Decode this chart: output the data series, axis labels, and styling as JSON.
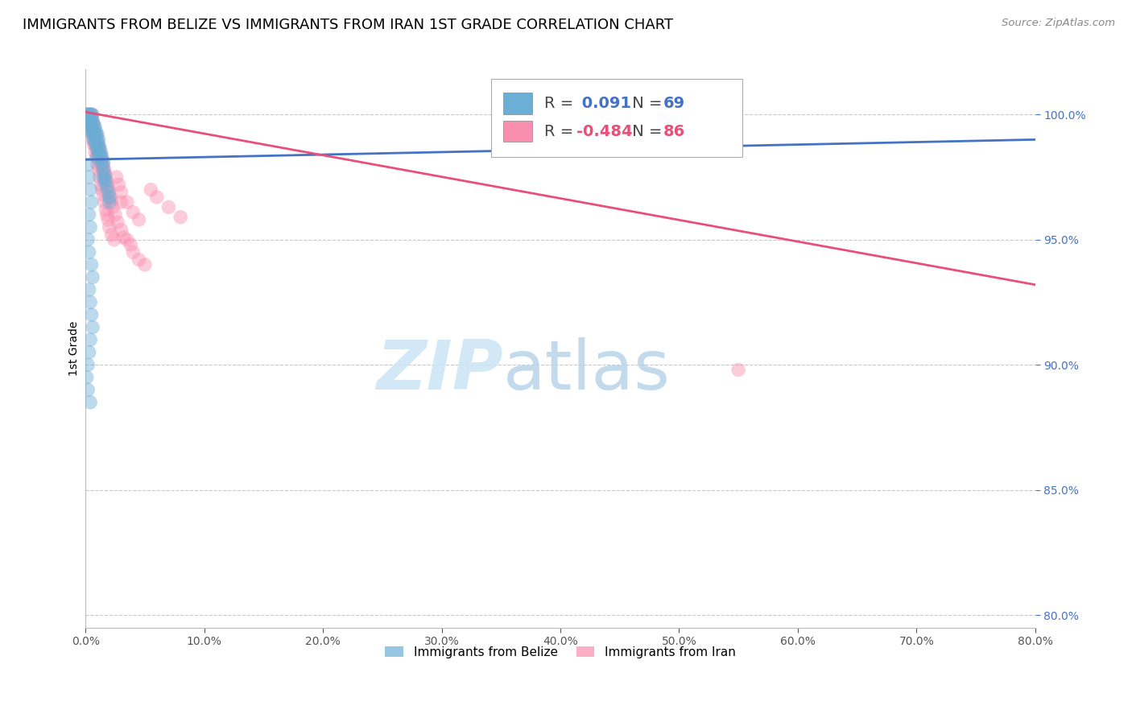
{
  "title": "IMMIGRANTS FROM BELIZE VS IMMIGRANTS FROM IRAN 1ST GRADE CORRELATION CHART",
  "source": "Source: ZipAtlas.com",
  "xlabel_vals": [
    0.0,
    10.0,
    20.0,
    30.0,
    40.0,
    50.0,
    60.0,
    70.0,
    80.0
  ],
  "ylabel_vals": [
    80.0,
    85.0,
    90.0,
    95.0,
    100.0
  ],
  "ylabel_label": "1st Grade",
  "xlim": [
    0.0,
    80.0
  ],
  "ylim": [
    79.5,
    101.8
  ],
  "belize_R": 0.091,
  "belize_N": 69,
  "iran_R": -0.484,
  "iran_N": 86,
  "belize_color": "#6baed6",
  "iran_color": "#fa8eb0",
  "belize_line_color": "#4472c4",
  "iran_line_color": "#e8507a",
  "legend_label_belize": "Immigrants from Belize",
  "legend_label_iran": "Immigrants from Iran",
  "watermark_zip": "ZIP",
  "watermark_atlas": "atlas",
  "background_color": "#ffffff",
  "grid_color": "#c8c8c8",
  "title_fontsize": 13,
  "axis_fontsize": 10,
  "belize_scatter_x": [
    0.1,
    0.2,
    0.2,
    0.3,
    0.3,
    0.3,
    0.4,
    0.4,
    0.4,
    0.5,
    0.5,
    0.5,
    0.5,
    0.6,
    0.6,
    0.6,
    0.6,
    0.7,
    0.7,
    0.7,
    0.8,
    0.8,
    0.8,
    0.9,
    0.9,
    0.9,
    1.0,
    1.0,
    1.0,
    1.0,
    1.1,
    1.1,
    1.1,
    1.2,
    1.2,
    1.3,
    1.3,
    1.4,
    1.4,
    1.5,
    1.5,
    1.5,
    1.6,
    1.6,
    1.7,
    1.8,
    1.9,
    2.0,
    2.0,
    0.2,
    0.3,
    0.4,
    0.5,
    0.3,
    0.4,
    0.2,
    0.3,
    0.5,
    0.6,
    0.3,
    0.4,
    0.5,
    0.6,
    0.4,
    0.3,
    0.2,
    0.1,
    0.2,
    0.4
  ],
  "belize_scatter_y": [
    100.0,
    100.0,
    99.8,
    100.0,
    99.8,
    99.5,
    100.0,
    99.8,
    99.6,
    100.0,
    99.8,
    99.5,
    99.3,
    100.0,
    99.7,
    99.4,
    99.2,
    99.6,
    99.3,
    99.0,
    99.5,
    99.2,
    98.9,
    99.3,
    99.0,
    98.7,
    99.2,
    98.9,
    98.6,
    98.3,
    99.0,
    98.7,
    98.4,
    98.7,
    98.4,
    98.5,
    98.2,
    98.3,
    98.0,
    98.1,
    97.8,
    97.5,
    97.6,
    97.3,
    97.4,
    97.1,
    96.9,
    96.7,
    96.5,
    98.0,
    97.5,
    97.0,
    96.5,
    96.0,
    95.5,
    95.0,
    94.5,
    94.0,
    93.5,
    93.0,
    92.5,
    92.0,
    91.5,
    91.0,
    90.5,
    90.0,
    89.5,
    89.0,
    88.5
  ],
  "iran_scatter_x": [
    0.1,
    0.2,
    0.2,
    0.3,
    0.3,
    0.3,
    0.4,
    0.4,
    0.4,
    0.5,
    0.5,
    0.5,
    0.6,
    0.6,
    0.6,
    0.7,
    0.7,
    0.7,
    0.8,
    0.8,
    0.8,
    0.9,
    0.9,
    1.0,
    1.0,
    1.0,
    1.1,
    1.1,
    1.2,
    1.2,
    1.3,
    1.3,
    1.4,
    1.4,
    1.5,
    1.5,
    1.6,
    1.6,
    1.7,
    1.8,
    1.9,
    2.0,
    2.1,
    2.2,
    2.3,
    2.5,
    2.7,
    3.0,
    3.2,
    3.5,
    3.8,
    4.0,
    4.5,
    5.0,
    0.5,
    0.6,
    0.7,
    0.8,
    0.9,
    1.0,
    1.1,
    1.2,
    1.3,
    1.4,
    1.5,
    1.6,
    1.7,
    1.8,
    1.9,
    2.0,
    2.2,
    2.4,
    2.6,
    2.8,
    3.0,
    3.5,
    4.0,
    4.5,
    5.5,
    6.0,
    7.0,
    8.0,
    55.0,
    3.0
  ],
  "iran_scatter_y": [
    100.0,
    100.0,
    99.9,
    100.0,
    99.8,
    99.7,
    100.0,
    99.8,
    99.6,
    100.0,
    99.7,
    99.5,
    99.8,
    99.5,
    99.3,
    99.6,
    99.3,
    99.0,
    99.4,
    99.1,
    98.8,
    99.2,
    98.9,
    99.0,
    98.7,
    98.4,
    98.8,
    98.5,
    98.6,
    98.3,
    98.4,
    98.1,
    98.2,
    97.9,
    98.0,
    97.7,
    97.8,
    97.5,
    97.6,
    97.3,
    97.1,
    96.9,
    96.7,
    96.5,
    96.3,
    96.0,
    95.7,
    95.4,
    95.1,
    95.0,
    94.8,
    94.5,
    94.2,
    94.0,
    99.3,
    99.0,
    98.8,
    98.5,
    98.3,
    98.0,
    97.8,
    97.5,
    97.2,
    97.0,
    96.8,
    96.5,
    96.2,
    96.0,
    95.8,
    95.5,
    95.2,
    95.0,
    97.5,
    97.2,
    96.9,
    96.5,
    96.1,
    95.8,
    97.0,
    96.7,
    96.3,
    95.9,
    89.8,
    96.5
  ],
  "belize_trendline_x": [
    0.0,
    80.0
  ],
  "belize_trendline_y": [
    98.2,
    99.0
  ],
  "iran_trendline_x": [
    0.0,
    80.0
  ],
  "iran_trendline_y": [
    100.1,
    93.2
  ]
}
